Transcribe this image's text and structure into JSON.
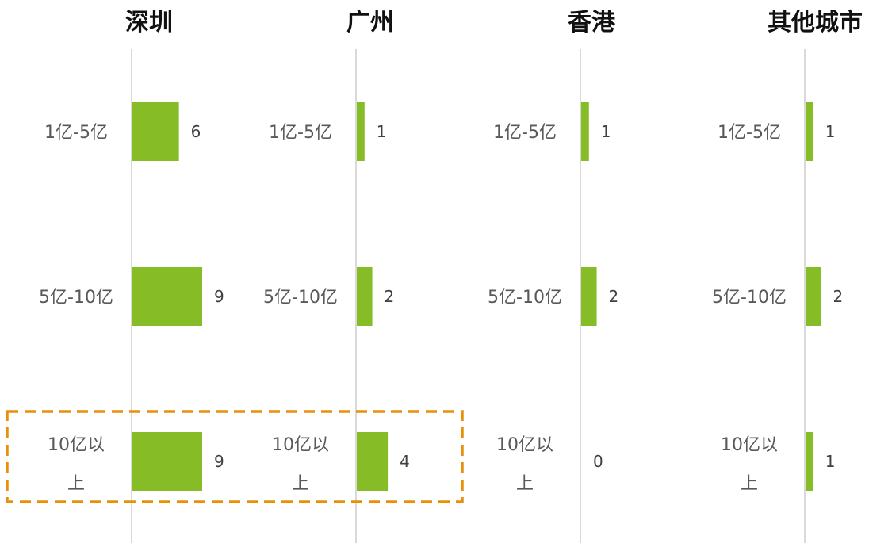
{
  "chart_data": {
    "type": "bar",
    "orientation": "horizontal",
    "categories": [
      "1亿-5亿",
      "5亿-10亿",
      "10亿以上"
    ],
    "category_lines": [
      [
        "1亿-5亿"
      ],
      [
        "5亿-10亿"
      ],
      [
        "10亿以",
        "上"
      ]
    ],
    "xlim": [
      0,
      9
    ],
    "grid": false,
    "series": [
      {
        "name": "深圳",
        "values": [
          6,
          9,
          9
        ]
      },
      {
        "name": "广州",
        "values": [
          1,
          2,
          4
        ]
      },
      {
        "name": "香港",
        "values": [
          1,
          2,
          0
        ]
      },
      {
        "name": "其他城市",
        "values": [
          1,
          2,
          1
        ]
      }
    ],
    "highlight": {
      "category": "10亿以上",
      "series": [
        "深圳",
        "广州"
      ],
      "color": "#e8900c"
    }
  },
  "colors": {
    "bar": "#86bc25",
    "axis": "#d9d9d9"
  }
}
